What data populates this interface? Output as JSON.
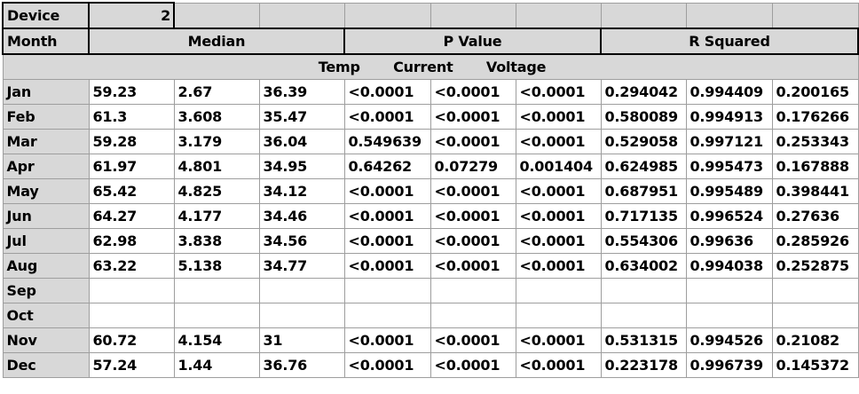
{
  "header": {
    "device_label": "Device",
    "device_value": "2",
    "month_label": "Month",
    "median_label": "Median",
    "pvalue_label": "P Value",
    "rsquared_label": "R Squared",
    "measures": [
      "Temp",
      "Current",
      "Voltage"
    ]
  },
  "rows": [
    {
      "month": "Jan",
      "cells": [
        "59.23",
        "2.67",
        "36.39",
        "<0.0001",
        "<0.0001",
        "<0.0001",
        "0.294042",
        "0.994409",
        "0.200165"
      ]
    },
    {
      "month": "Feb",
      "cells": [
        "61.3",
        "3.608",
        "35.47",
        "<0.0001",
        "<0.0001",
        "<0.0001",
        "0.580089",
        "0.994913",
        "0.176266"
      ]
    },
    {
      "month": "Mar",
      "cells": [
        "59.28",
        "3.179",
        "36.04",
        "0.549639",
        "<0.0001",
        "<0.0001",
        "0.529058",
        "0.997121",
        "0.253343"
      ]
    },
    {
      "month": "Apr",
      "cells": [
        "61.97",
        "4.801",
        "34.95",
        "0.64262",
        "0.07279",
        "0.001404",
        "0.624985",
        "0.995473",
        "0.167888"
      ]
    },
    {
      "month": "May",
      "cells": [
        "65.42",
        "4.825",
        "34.12",
        "<0.0001",
        "<0.0001",
        "<0.0001",
        "0.687951",
        "0.995489",
        "0.398441"
      ]
    },
    {
      "month": "Jun",
      "cells": [
        "64.27",
        "4.177",
        "34.46",
        "<0.0001",
        "<0.0001",
        "<0.0001",
        "0.717135",
        "0.996524",
        "0.27636"
      ]
    },
    {
      "month": "Jul",
      "cells": [
        "62.98",
        "3.838",
        "34.56",
        "<0.0001",
        "<0.0001",
        "<0.0001",
        "0.554306",
        "0.99636",
        "0.285926"
      ]
    },
    {
      "month": "Aug",
      "cells": [
        "63.22",
        "5.138",
        "34.77",
        "<0.0001",
        "<0.0001",
        "<0.0001",
        "0.634002",
        "0.994038",
        "0.252875"
      ]
    },
    {
      "month": "Sep",
      "cells": [
        "",
        "",
        "",
        "",
        "",
        "",
        "",
        "",
        ""
      ]
    },
    {
      "month": "Oct",
      "cells": [
        "",
        "",
        "",
        "",
        "",
        "",
        "",
        "",
        ""
      ]
    },
    {
      "month": "Nov",
      "cells": [
        "60.72",
        "4.154",
        "31",
        "<0.0001",
        "<0.0001",
        "<0.0001",
        "0.531315",
        "0.994526",
        "0.21082"
      ]
    },
    {
      "month": "Dec",
      "cells": [
        "57.24",
        "1.44",
        "36.76",
        "<0.0001",
        "<0.0001",
        "<0.0001",
        "0.223178",
        "0.996739",
        "0.145372"
      ]
    }
  ]
}
